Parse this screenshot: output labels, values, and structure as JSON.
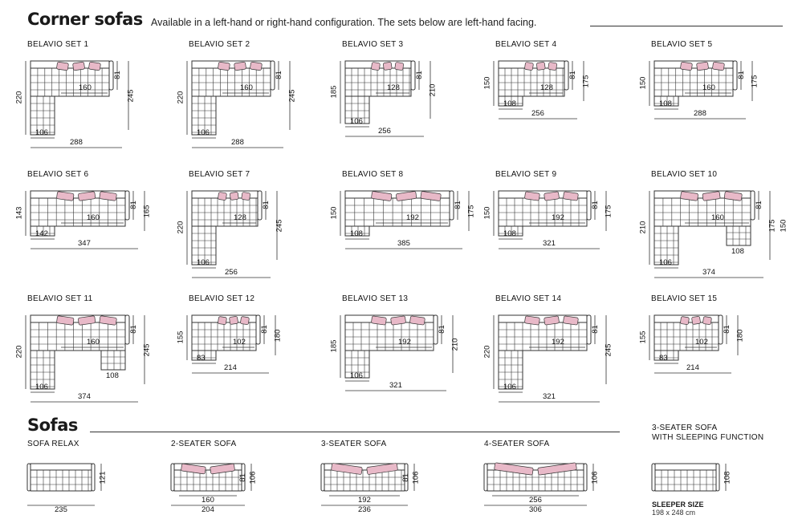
{
  "corner": {
    "heading": "Corner sofas",
    "subheading": "Available in a left-hand or right-hand configuration. The sets below are left-hand facing."
  },
  "sofas_heading": "Sofas",
  "colors": {
    "line": "#333333",
    "cushion": "#e8b9c8",
    "accent": "#1a1a1a"
  },
  "corner_sets": [
    {
      "label": "BELAVIO SET 1",
      "seat_depth": "81",
      "left_height": "220",
      "right_height": "245",
      "seat": "160",
      "chaise": "106",
      "total": "288"
    },
    {
      "label": "BELAVIO SET 2",
      "seat_depth": "81",
      "left_height": "220",
      "right_height": "245",
      "seat": "160",
      "chaise": "106",
      "total": "288"
    },
    {
      "label": "BELAVIO SET 3",
      "seat_depth": "81",
      "left_height": "185",
      "right_height": "210",
      "seat": "128",
      "chaise": "106",
      "total": "256"
    },
    {
      "label": "BELAVIO SET 4",
      "seat_depth": "81",
      "left_height": "150",
      "right_height": "175",
      "seat": "128",
      "chaise": "108",
      "total": "256"
    },
    {
      "label": "BELAVIO SET 5",
      "seat_depth": "81",
      "left_height": "150",
      "right_height": "175",
      "seat": "160",
      "chaise": "108",
      "total": "288"
    },
    {
      "label": "BELAVIO SET 6",
      "seat_depth": "81",
      "left_height": "143",
      "right_height": "165",
      "seat": "160",
      "chaise": "142",
      "total": "347"
    },
    {
      "label": "BELAVIO SET 7",
      "seat_depth": "81",
      "left_height": "220",
      "right_height": "245",
      "seat": "128",
      "chaise": "106",
      "total": "256"
    },
    {
      "label": "BELAVIO SET 8",
      "seat_depth": "81",
      "left_height": "150",
      "right_height": "175",
      "seat": "192",
      "chaise": "108",
      "total": "385"
    },
    {
      "label": "BELAVIO SET 9",
      "seat_depth": "81",
      "left_height": "150",
      "right_height": "175",
      "seat": "192",
      "chaise": "108",
      "total": "321"
    },
    {
      "label": "BELAVIO SET 10",
      "seat_depth": "81",
      "left_height": "210",
      "right_height": "175",
      "extra_height": "150",
      "seat": "160",
      "chaise": "106",
      "chaise2": "108",
      "total": "374"
    },
    {
      "label": "BELAVIO SET 11",
      "seat_depth": "81",
      "left_height": "220",
      "left_height2": "245",
      "seat": "160",
      "chaise": "106",
      "chaise2": "108",
      "total": "374"
    },
    {
      "label": "BELAVIO SET 12",
      "seat_depth": "81",
      "left_height": "155",
      "right_height": "180",
      "seat": "102",
      "chaise": "83",
      "total": "214"
    },
    {
      "label": "BELAVIO SET 13",
      "seat_depth": "81",
      "left_height": "185",
      "right_height": "210",
      "seat": "192",
      "chaise": "106",
      "total": "321"
    },
    {
      "label": "BELAVIO SET 14",
      "seat_depth": "81",
      "left_height": "220",
      "right_height": "245",
      "seat": "192",
      "chaise": "106",
      "total": "321"
    },
    {
      "label": "BELAVIO SET 15",
      "seat_depth": "81",
      "left_height": "155",
      "right_height": "180",
      "seat": "102",
      "chaise": "83",
      "total": "214"
    }
  ],
  "sofas": [
    {
      "label": "SOFA RELAX",
      "depth": "121",
      "total": "235"
    },
    {
      "label": "2-SEATER SOFA",
      "seat_depth": "81",
      "depth": "106",
      "seat": "160",
      "total": "204"
    },
    {
      "label": "3-SEATER SOFA",
      "seat_depth": "81",
      "depth": "106",
      "seat": "192",
      "total": "236"
    },
    {
      "label": "4-SEATER SOFA",
      "depth": "106",
      "seat": "256",
      "total": "306"
    },
    {
      "label_line1": "3-SEATER SOFA",
      "label_line2": "WITH SLEEPING FUNCTION",
      "depth": "108",
      "sleeper_title": "SLEEPER SIZE",
      "sleeper_value": "198 x 248 cm"
    }
  ]
}
